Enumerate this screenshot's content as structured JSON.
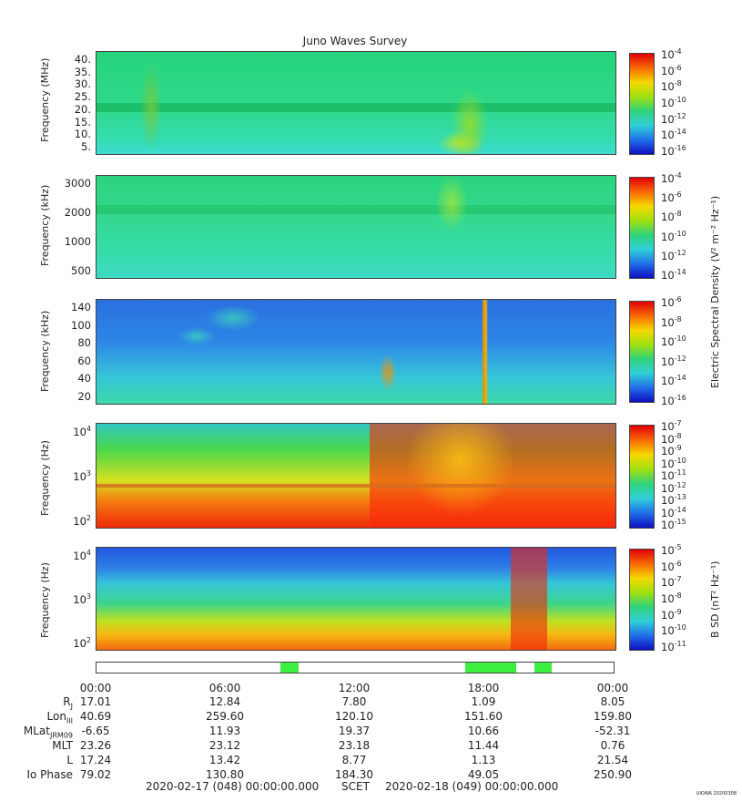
{
  "title": "Juno Waves Survey",
  "panels": [
    {
      "ylabel": "Frequency (MHz)",
      "ticks": [
        "40.",
        "35.",
        "30.",
        "25.",
        "20.",
        "15.",
        "10.",
        "5."
      ],
      "cbar": [
        "10^-4",
        "10^-6",
        "10^-8",
        "10^-10",
        "10^-12",
        "10^-14",
        "10^-16"
      ]
    },
    {
      "ylabel": "Frequency (kHz)",
      "ticks": [
        "3000",
        "2000",
        "1000",
        "500"
      ],
      "cbar": [
        "10^-4",
        "10^-6",
        "10^-8",
        "10^-10",
        "10^-12",
        "10^-14"
      ]
    },
    {
      "ylabel": "Frequency (kHz)",
      "ticks": [
        "140",
        "100",
        "80",
        "60",
        "40",
        "20"
      ],
      "cbar": [
        "10^-6",
        "10^-8",
        "10^-10",
        "10^-12",
        "10^-14",
        "10^-16"
      ]
    },
    {
      "ylabel": "Frequency (Hz)",
      "ticks": [
        "10^4",
        "10^3",
        "10^2"
      ],
      "cbar": [
        "10^-7",
        "10^-8",
        "10^-9",
        "10^-10",
        "10^-11",
        "10^-12",
        "10^-13",
        "10^-14",
        "10^-15"
      ]
    },
    {
      "ylabel": "Frequency (Hz)",
      "ticks": [
        "10^4",
        "10^3",
        "10^2"
      ],
      "cbar": [
        "10^-5",
        "10^-6",
        "10^-7",
        "10^-8",
        "10^-9",
        "10^-10",
        "10^-11"
      ]
    }
  ],
  "cbar_title_e": "Electric Spectral Density (V² m⁻² Hz⁻¹)",
  "cbar_title_b": "B SD (nT² Hz⁻¹)",
  "time_ticks": [
    "00:00",
    "06:00",
    "12:00",
    "18:00",
    "00:00"
  ],
  "ephemeris": [
    {
      "name": "R_J",
      "values": [
        "17.01",
        "12.84",
        "7.80",
        "1.09",
        "8.05"
      ]
    },
    {
      "name": "Lon_III",
      "values": [
        "40.69",
        "259.60",
        "120.10",
        "151.60",
        "159.80"
      ]
    },
    {
      "name": "MLat_JRM09",
      "values": [
        "-6.65",
        "11.93",
        "19.37",
        "10.66",
        "-52.31"
      ]
    },
    {
      "name": "MLT",
      "values": [
        "23.26",
        "23.12",
        "23.18",
        "11.44",
        "0.76"
      ]
    },
    {
      "name": "L",
      "values": [
        "17.24",
        "13.42",
        "8.77",
        "1.13",
        "21.54"
      ]
    },
    {
      "name": "Io Phase",
      "values": [
        "79.02",
        "130.80",
        "184.30",
        "49.05",
        "250.90"
      ]
    }
  ],
  "footer": {
    "start": "2020-02-17 (048) 00:00:00.000",
    "mid": "SCET",
    "end": "2020-02-18 (049) 00:00:00.000"
  },
  "credit": "UIOWA 20200308",
  "chart_data": {
    "type": "heatmap",
    "title": "Juno Waves Survey",
    "x_range": [
      "2020-02-17T00:00",
      "2020-02-18T00:00"
    ],
    "panel_count": 5
  }
}
